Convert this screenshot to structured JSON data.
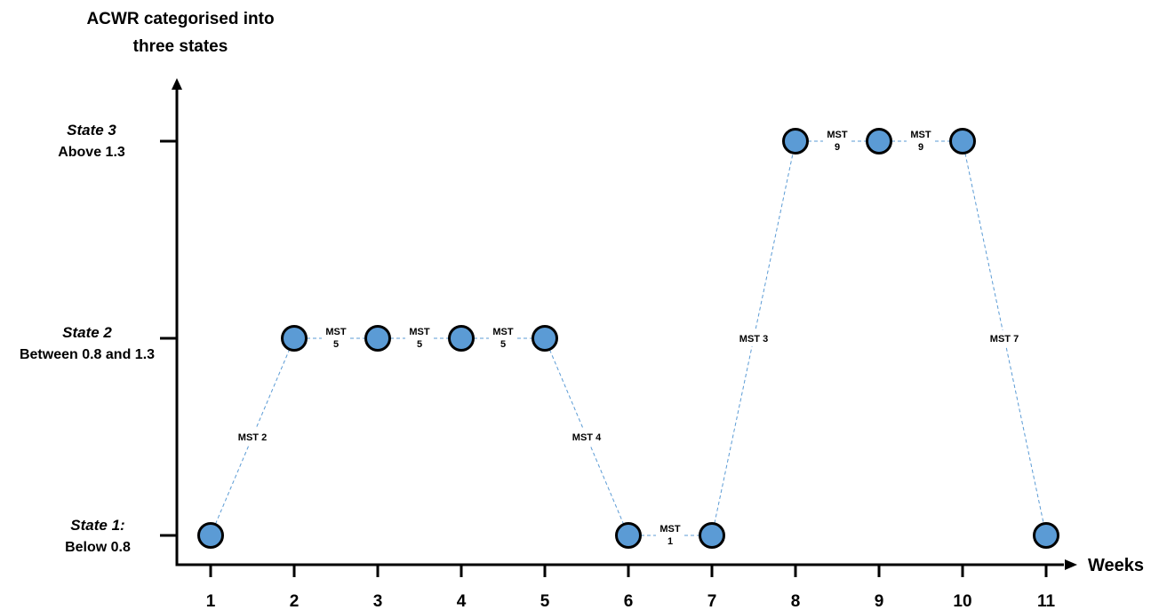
{
  "chart_data": {
    "type": "line",
    "title_lines": [
      "ACWR categorised into",
      "three states"
    ],
    "xlabel": "Weeks",
    "x": [
      1,
      2,
      3,
      4,
      5,
      6,
      7,
      8,
      9,
      10,
      11
    ],
    "x_ticks": [
      "1",
      "2",
      "3",
      "4",
      "5",
      "6",
      "7",
      "8",
      "9",
      "10",
      "11"
    ],
    "y_states": [
      {
        "level": 1,
        "name": "State 1:",
        "desc": "Below 0.8"
      },
      {
        "level": 2,
        "name": "State 2",
        "desc": "Between 0.8 and 1.3"
      },
      {
        "level": 3,
        "name": "State 3",
        "desc": "Above 1.3"
      }
    ],
    "values": [
      1,
      2,
      2,
      2,
      2,
      1,
      1,
      3,
      3,
      3,
      1
    ],
    "transitions": [
      {
        "from_week": 1,
        "to_week": 2,
        "label": [
          "MST 2"
        ]
      },
      {
        "from_week": 2,
        "to_week": 3,
        "label": [
          "MST",
          "5"
        ]
      },
      {
        "from_week": 3,
        "to_week": 4,
        "label": [
          "MST",
          "5"
        ]
      },
      {
        "from_week": 4,
        "to_week": 5,
        "label": [
          "MST",
          "5"
        ]
      },
      {
        "from_week": 5,
        "to_week": 6,
        "label": [
          "MST 4"
        ]
      },
      {
        "from_week": 6,
        "to_week": 7,
        "label": [
          "MST",
          "1"
        ]
      },
      {
        "from_week": 7,
        "to_week": 8,
        "label": [
          "MST 3"
        ]
      },
      {
        "from_week": 8,
        "to_week": 9,
        "label": [
          "MST",
          "9"
        ]
      },
      {
        "from_week": 9,
        "to_week": 10,
        "label": [
          "MST",
          "9"
        ]
      },
      {
        "from_week": 10,
        "to_week": 11,
        "label": [
          "MST 7"
        ]
      }
    ],
    "colors": {
      "point_fill": "#5b9bd5",
      "point_stroke": "#000000",
      "connector": "#5b9bd5",
      "axis": "#000000"
    }
  }
}
